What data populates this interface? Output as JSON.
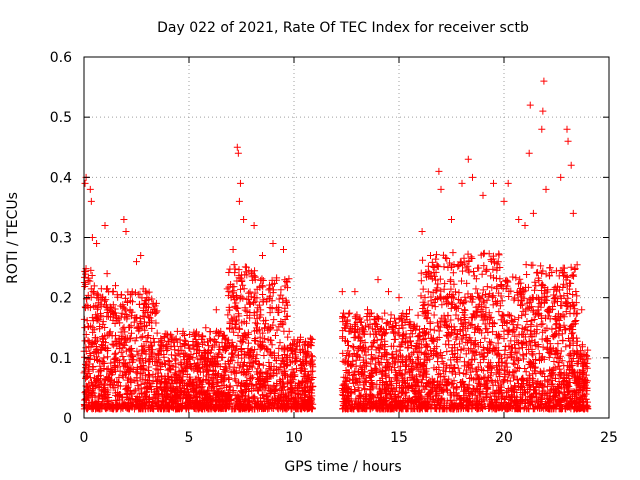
{
  "chart_data": {
    "type": "scatter",
    "title": "Day 022 of 2021, Rate Of TEC Index for receiver sctb",
    "xlabel": "GPS time / hours",
    "ylabel": "ROTI / TECUs",
    "xlim": [
      0,
      25
    ],
    "ylim": [
      0,
      0.6
    ],
    "xticks": [
      "0",
      "5",
      "10",
      "15",
      "20",
      "25"
    ],
    "yticks": [
      "0",
      "0.1",
      "0.2",
      "0.3",
      "0.4",
      "0.5",
      "0.6"
    ],
    "grid": true,
    "marker": "+",
    "colors": {
      "points": "#ff0000",
      "grid": "#a0a0a0",
      "axes": "#000000"
    },
    "series": [
      {
        "values": [
          [
            0.05,
            0.39
          ],
          [
            0.1,
            0.4
          ],
          [
            0.3,
            0.38
          ],
          [
            0.35,
            0.36
          ],
          [
            0.4,
            0.3
          ],
          [
            0.6,
            0.29
          ],
          [
            1.0,
            0.32
          ],
          [
            1.1,
            0.24
          ],
          [
            1.5,
            0.22
          ],
          [
            1.9,
            0.33
          ],
          [
            2.0,
            0.31
          ],
          [
            2.5,
            0.26
          ],
          [
            2.7,
            0.27
          ],
          [
            3.0,
            0.2
          ],
          [
            3.3,
            0.19
          ],
          [
            4.2,
            0.13
          ],
          [
            5.3,
            0.14
          ],
          [
            5.8,
            0.15
          ],
          [
            6.3,
            0.18
          ],
          [
            6.9,
            0.21
          ],
          [
            7.1,
            0.28
          ],
          [
            7.3,
            0.45
          ],
          [
            7.35,
            0.44
          ],
          [
            7.4,
            0.36
          ],
          [
            7.45,
            0.39
          ],
          [
            7.6,
            0.33
          ],
          [
            8.1,
            0.32
          ],
          [
            8.5,
            0.27
          ],
          [
            9.0,
            0.29
          ],
          [
            9.5,
            0.28
          ],
          [
            10.0,
            0.13
          ],
          [
            10.6,
            0.1
          ],
          [
            12.3,
            0.21
          ],
          [
            12.9,
            0.21
          ],
          [
            13.5,
            0.18
          ],
          [
            14.0,
            0.23
          ],
          [
            14.5,
            0.21
          ],
          [
            15.0,
            0.2
          ],
          [
            15.5,
            0.18
          ],
          [
            16.1,
            0.31
          ],
          [
            16.5,
            0.27
          ],
          [
            16.9,
            0.41
          ],
          [
            17.0,
            0.38
          ],
          [
            17.5,
            0.33
          ],
          [
            18.0,
            0.39
          ],
          [
            18.3,
            0.43
          ],
          [
            18.5,
            0.4
          ],
          [
            19.0,
            0.37
          ],
          [
            19.5,
            0.39
          ],
          [
            20.0,
            0.36
          ],
          [
            20.2,
            0.39
          ],
          [
            20.7,
            0.33
          ],
          [
            21.0,
            0.32
          ],
          [
            21.2,
            0.44
          ],
          [
            21.25,
            0.52
          ],
          [
            21.4,
            0.34
          ],
          [
            21.8,
            0.48
          ],
          [
            21.85,
            0.51
          ],
          [
            21.9,
            0.56
          ],
          [
            22.0,
            0.38
          ],
          [
            22.2,
            0.25
          ],
          [
            22.7,
            0.4
          ],
          [
            23.0,
            0.48
          ],
          [
            23.05,
            0.46
          ],
          [
            23.2,
            0.42
          ],
          [
            23.3,
            0.34
          ],
          [
            23.7,
            0.18
          ]
        ]
      }
    ]
  }
}
